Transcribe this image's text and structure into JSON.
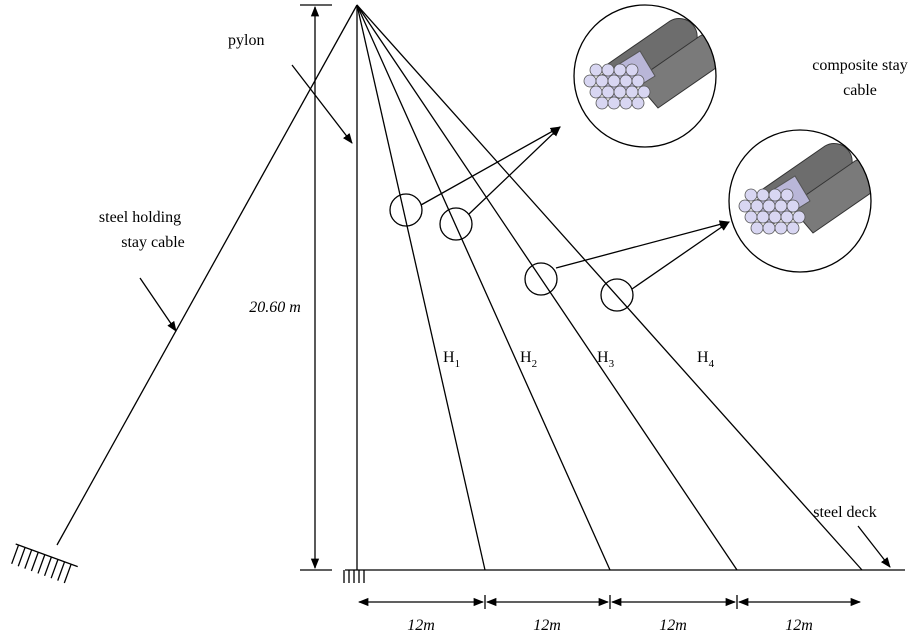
{
  "labels": {
    "pylon": "pylon",
    "composite": [
      "composite stay",
      "cable"
    ],
    "holding": [
      "steel holding",
      "stay cable"
    ],
    "height": "20.60 m",
    "deck": "steel deck"
  },
  "cables": [
    {
      "letter": "H",
      "subscript": "1"
    },
    {
      "letter": "H",
      "subscript": "2"
    },
    {
      "letter": "H",
      "subscript": "3"
    },
    {
      "letter": "H",
      "subscript": "4"
    }
  ],
  "spans": [
    "12m",
    "12m",
    "12m",
    "12m"
  ]
}
